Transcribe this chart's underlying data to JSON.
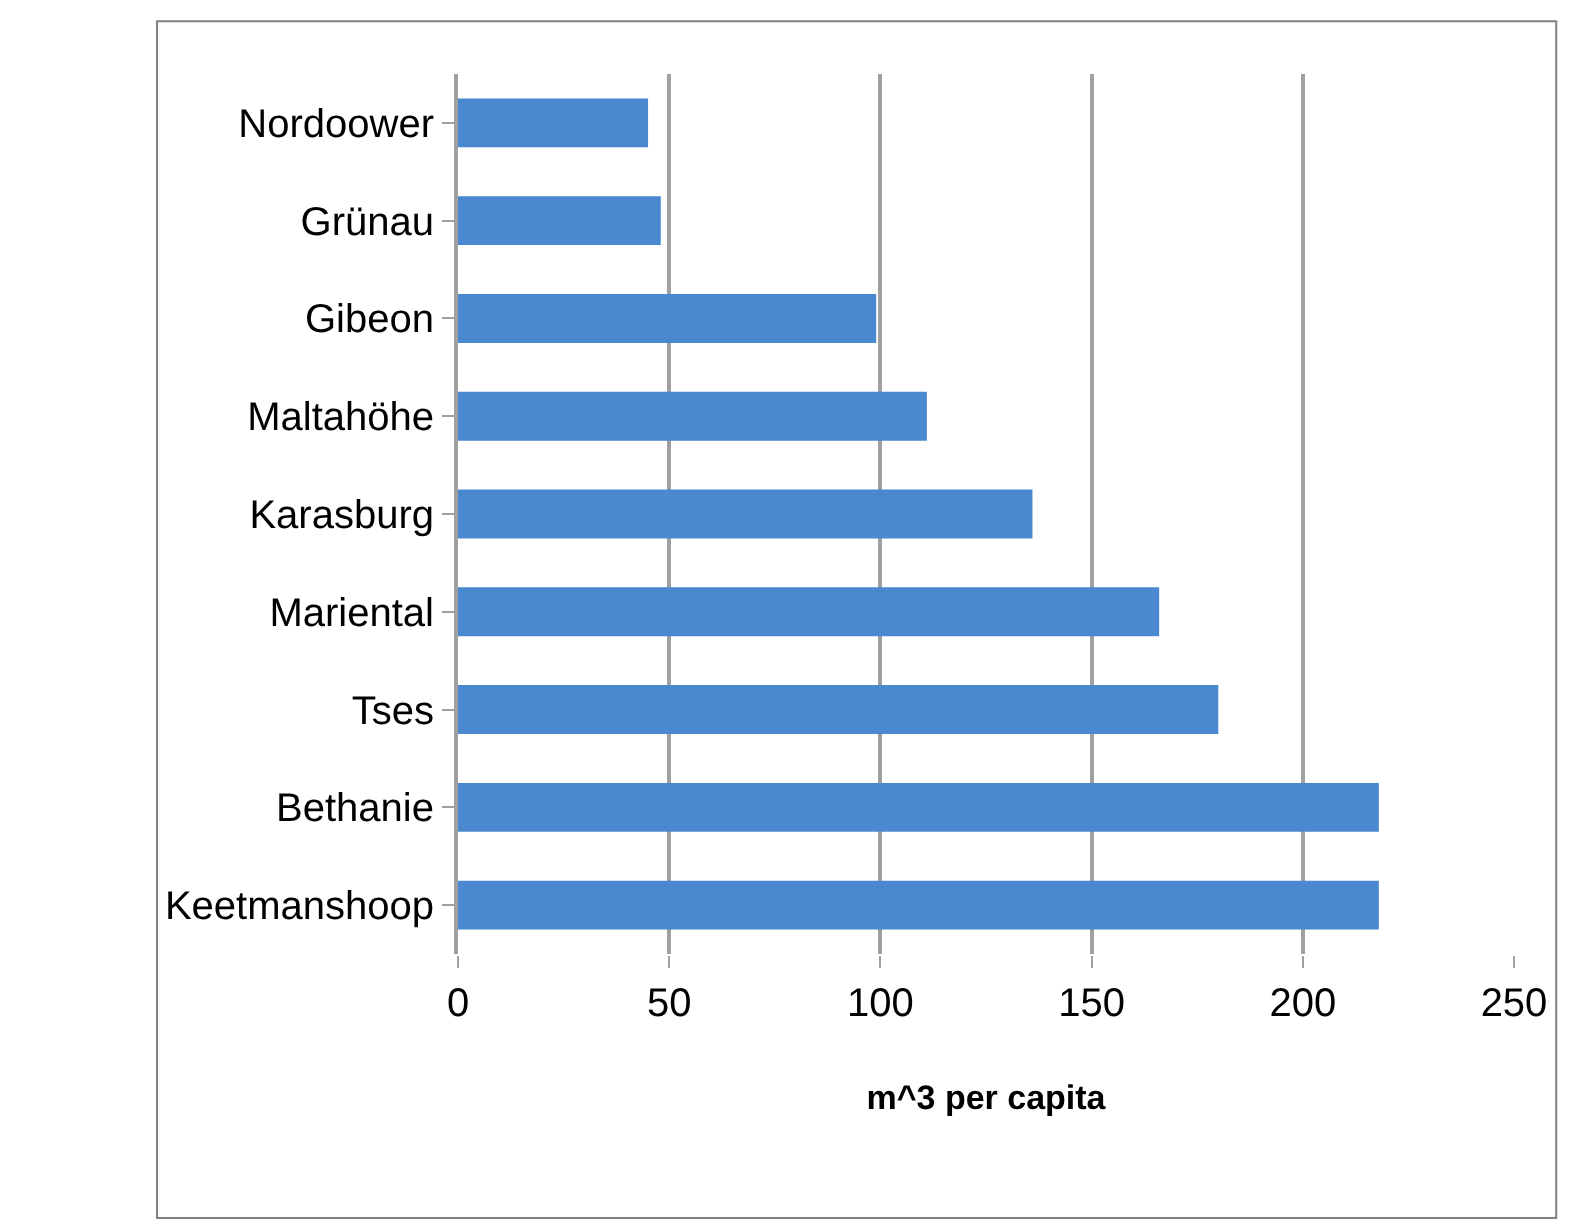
{
  "chart_data": {
    "type": "bar",
    "orientation": "horizontal",
    "xlabel": "m^3 per capita",
    "categories": [
      "Nordoower",
      "Grünau",
      "Gibeon",
      "Maltahöhe",
      "Karasburg",
      "Mariental",
      "Tses",
      "Bethanie",
      "Keetmanshoop"
    ],
    "series": [
      {
        "color": "#4a89cf",
        "values": [
          45,
          48,
          99,
          111,
          136,
          166,
          180,
          218,
          218
        ]
      }
    ],
    "xlim": [
      0,
      250
    ],
    "xticks": [
      0,
      50,
      100,
      150,
      200,
      250
    ],
    "grid": "x",
    "legend": false
  }
}
